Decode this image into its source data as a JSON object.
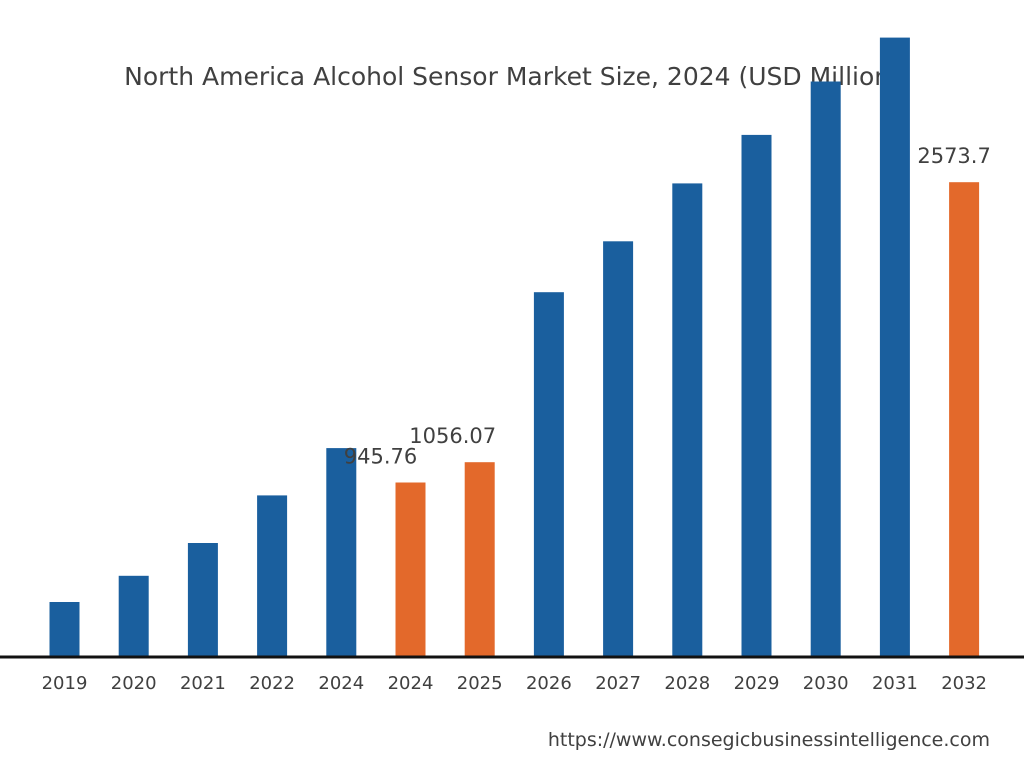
{
  "chart_data": {
    "type": "bar",
    "title": "North America Alcohol Sensor Market Size, 2024 (USD Million)",
    "xlabel": "",
    "ylabel": "",
    "categories": [
      "2019",
      "2020",
      "2021",
      "2022",
      "2024",
      "2024",
      "2025",
      "2026",
      "2027",
      "2028",
      "2029",
      "2030",
      "2031",
      "2032"
    ],
    "values": [
      298,
      440,
      618,
      876,
      1132,
      945.76,
      1056.07,
      1977.32,
      2253,
      2567,
      2830,
      3119,
      3357,
      2573.7
    ],
    "highlighted": [
      false,
      false,
      false,
      false,
      false,
      true,
      true,
      false,
      false,
      false,
      false,
      false,
      false,
      true
    ],
    "data_labels": [
      "",
      "",
      "",
      "",
      "",
      "945.76",
      "1056.07",
      "",
      "",
      "",
      "",
      "",
      "",
      "2573.7"
    ],
    "colors": {
      "default": "#1a5f9e",
      "highlight": "#e3692b",
      "axis": "#111111"
    },
    "legend": "none",
    "grid": false
  },
  "footer": {
    "source_url": "https://www.consegicbusinessintelligence.com"
  }
}
